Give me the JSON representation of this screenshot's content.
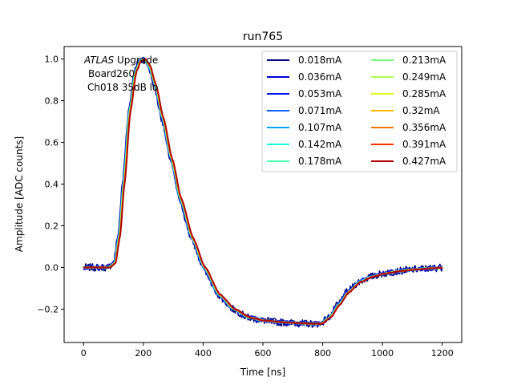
{
  "chart_data": {
    "type": "line",
    "title": "run765",
    "xlabel": "Time [ns]",
    "ylabel": "Amplitude [ADC counts]",
    "xlim": [
      -65,
      1265
    ],
    "ylim": [
      -0.36,
      1.06
    ],
    "xticks": [
      0,
      200,
      400,
      600,
      800,
      1000,
      1200
    ],
    "yticks": [
      -0.2,
      0.0,
      0.2,
      0.4,
      0.6,
      0.8,
      1.0
    ],
    "xtick_labels": [
      "0",
      "200",
      "400",
      "600",
      "800",
      "1000",
      "1200"
    ],
    "ytick_labels": [
      "−0.2",
      "0.0",
      "0.2",
      "0.4",
      "0.6",
      "0.8",
      "1.0"
    ],
    "grid": false,
    "legend_position": "top-right",
    "legend_columns": 2,
    "annotation": {
      "italic": "ATLAS",
      "rest": " Upgrade",
      "lines": [
        "Board260",
        "Ch018 35dB lo"
      ]
    },
    "pulse_shape": {
      "x": [
        0,
        80,
        100,
        115,
        130,
        150,
        170,
        185,
        200,
        215,
        235,
        260,
        290,
        320,
        360,
        400,
        450,
        500,
        550,
        600,
        650,
        700,
        750,
        790,
        820,
        850,
        880,
        920,
        960,
        1000,
        1050,
        1100,
        1150,
        1200
      ],
      "y": [
        0.0,
        0.0,
        0.02,
        0.15,
        0.4,
        0.75,
        0.94,
        0.99,
        1.0,
        0.97,
        0.88,
        0.72,
        0.52,
        0.33,
        0.14,
        0.0,
        -0.13,
        -0.2,
        -0.24,
        -0.255,
        -0.262,
        -0.266,
        -0.27,
        -0.27,
        -0.24,
        -0.18,
        -0.12,
        -0.07,
        -0.045,
        -0.03,
        -0.018,
        -0.01,
        -0.005,
        0.0
      ]
    },
    "series": [
      {
        "name": "0.018mA",
        "color": "#00007f",
        "shift_ns": 0,
        "noise": 0.018
      },
      {
        "name": "0.036mA",
        "color": "#0000d0",
        "shift_ns": 1,
        "noise": 0.012
      },
      {
        "name": "0.053mA",
        "color": "#0010ff",
        "shift_ns": 1.5,
        "noise": 0.009
      },
      {
        "name": "0.071mA",
        "color": "#0060ff",
        "shift_ns": 2,
        "noise": 0.007
      },
      {
        "name": "0.107mA",
        "color": "#00a4ff",
        "shift_ns": 2.5,
        "noise": 0.006
      },
      {
        "name": "0.142mA",
        "color": "#19ffde",
        "shift_ns": 3,
        "noise": 0.005
      },
      {
        "name": "0.178mA",
        "color": "#4dffaa",
        "shift_ns": 3.5,
        "noise": 0.004
      },
      {
        "name": "0.213mA",
        "color": "#7dff7a",
        "shift_ns": 4,
        "noise": 0.004
      },
      {
        "name": "0.249mA",
        "color": "#aaff4d",
        "shift_ns": 4.5,
        "noise": 0.003
      },
      {
        "name": "0.285mA",
        "color": "#e4ff13",
        "shift_ns": 5,
        "noise": 0.003
      },
      {
        "name": "0.32mA",
        "color": "#ffb900",
        "shift_ns": 5.5,
        "noise": 0.002
      },
      {
        "name": "0.356mA",
        "color": "#ff7300",
        "shift_ns": 6,
        "noise": 0.002
      },
      {
        "name": "0.391mA",
        "color": "#ff3000",
        "shift_ns": 6.5,
        "noise": 0.002
      },
      {
        "name": "0.427mA",
        "color": "#b20000",
        "shift_ns": 7,
        "noise": 0.002
      }
    ]
  }
}
